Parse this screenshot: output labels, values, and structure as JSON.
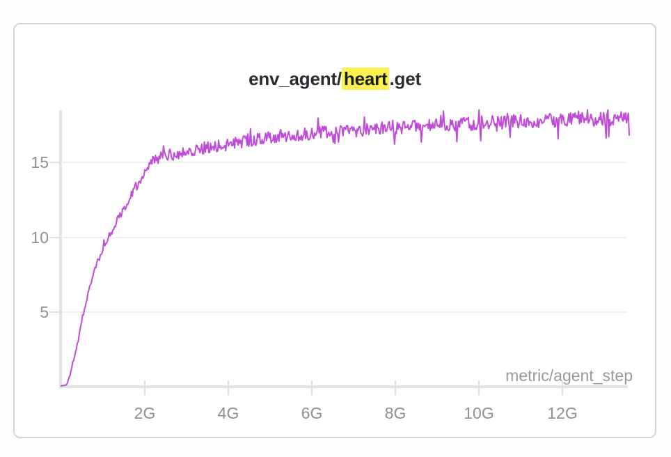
{
  "panel": {
    "title": {
      "prefix": "env_agent/",
      "highlight": "heart",
      "suffix": ".get",
      "highlight_color": "#fbf24f"
    },
    "x_axis_title": "metric/agent_step"
  },
  "chart_data": {
    "type": "line",
    "title": "env_agent/heart.get",
    "xlabel": "metric/agent_step",
    "ylabel": "",
    "x_ticks": [
      "2G",
      "4G",
      "6G",
      "8G",
      "10G",
      "12G"
    ],
    "x_tick_values": [
      2,
      4,
      6,
      8,
      10,
      12
    ],
    "y_ticks": [
      "5",
      "10",
      "15"
    ],
    "y_tick_values": [
      5,
      10,
      15
    ],
    "xlim": [
      0,
      13.6
    ],
    "ylim": [
      0,
      18.5
    ],
    "grid": "horizontal",
    "legend": "none",
    "series": [
      {
        "name": "env_agent/heart.get",
        "color": "#c14bd9",
        "description": "Noisy training curve: rapid rise from 0 to ~15 by 2G steps, then slow asymptotic climb to ~18 by 13.6G steps.",
        "anchor_points": {
          "x": [
            0,
            0.12,
            0.2,
            0.3,
            0.42,
            0.55,
            0.7,
            0.85,
            1.0,
            1.15,
            1.35,
            1.55,
            1.75,
            1.95,
            2.1,
            2.25,
            2.5,
            2.8,
            3.2,
            3.6,
            4.0,
            4.5,
            5.2,
            6.0,
            6.9,
            8.0,
            8.5,
            9.5,
            10.2,
            11.0,
            11.9,
            12.8,
            13.3,
            13.57
          ],
          "y": [
            0.08,
            0.12,
            0.7,
            1.9,
            3.4,
            5.2,
            6.9,
            8.2,
            9.2,
            10.0,
            11.2,
            12.2,
            13.2,
            14.2,
            14.8,
            15.2,
            15.45,
            15.6,
            15.85,
            16.05,
            16.2,
            16.45,
            16.7,
            16.95,
            17.1,
            17.3,
            17.4,
            17.55,
            17.65,
            17.72,
            17.8,
            17.9,
            17.95,
            18.0
          ]
        },
        "noise": {
          "seed": 1337,
          "samples": 640,
          "foot_g": 0.13,
          "foot_amp": 0.02,
          "amp_start": 0.1,
          "amp_plateau": 0.38,
          "ramp_g": 2.5,
          "amp_growth_per_g": 0.008,
          "spike_chance": 0.08,
          "spike_scale": 2.4
        }
      }
    ]
  }
}
